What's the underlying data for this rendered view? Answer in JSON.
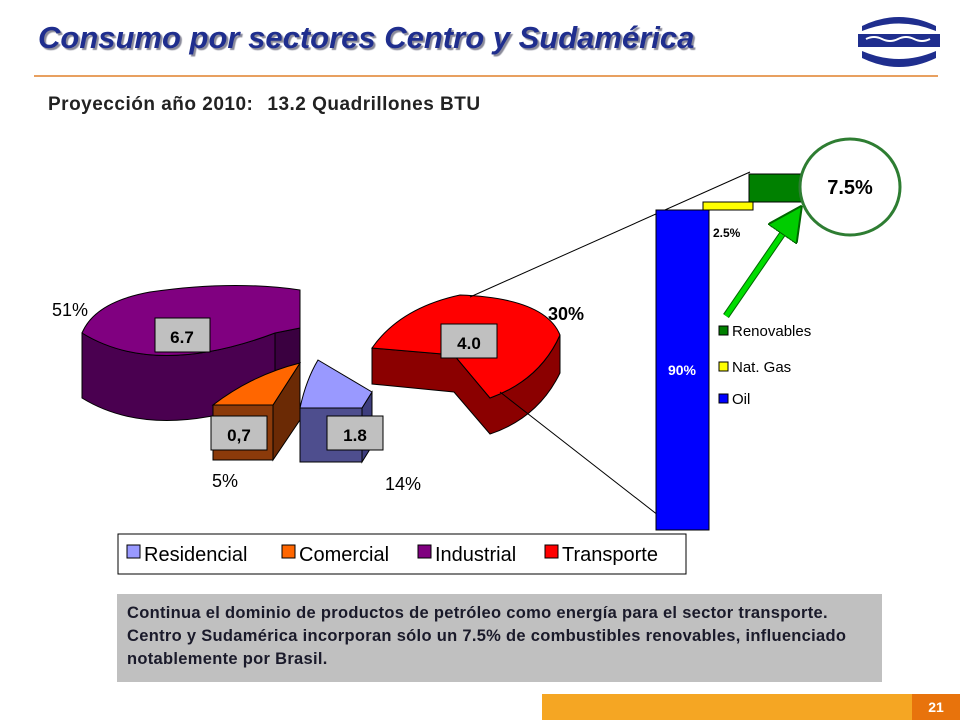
{
  "title": "Consumo por sectores  Centro y Sudamérica",
  "subtitle": {
    "label": "Proyección año 2010:",
    "value": "13.2 Quadrillones BTU"
  },
  "note": "Continua el dominio de productos de petróleo como energía para el sector transporte. Centro y  Sudamérica incorporan  sólo un 7.5% de combustibles renovables, influenciado notablemente por Brasil.",
  "page_number": "21",
  "logo": "company-logo",
  "chart_data": [
    {
      "type": "pie",
      "categories": [
        "Residencial",
        "Comercial",
        "Industrial",
        "Transporte"
      ],
      "values": [
        1.8,
        0.7,
        6.7,
        4.0
      ],
      "value_labels": [
        "1.8",
        "0,7",
        "6.7",
        "4.0"
      ],
      "percent_labels": [
        "14%",
        "5%",
        "51%",
        "30%"
      ],
      "colors": [
        "#9999FF",
        "#FF6600",
        "#800080",
        "#FF0000"
      ],
      "legend_position": "bottom"
    },
    {
      "type": "bar",
      "stacked": true,
      "series": [
        {
          "name": "Renovables",
          "value": 7.5,
          "label": "7.5%",
          "color": "#008000"
        },
        {
          "name": "Nat. Gas",
          "value": 2.5,
          "label": "2.5%",
          "color": "#FFFF00"
        },
        {
          "name": "Oil",
          "value": 90,
          "label": "90%",
          "color": "#0000FF"
        }
      ],
      "legend_position": "right"
    }
  ]
}
